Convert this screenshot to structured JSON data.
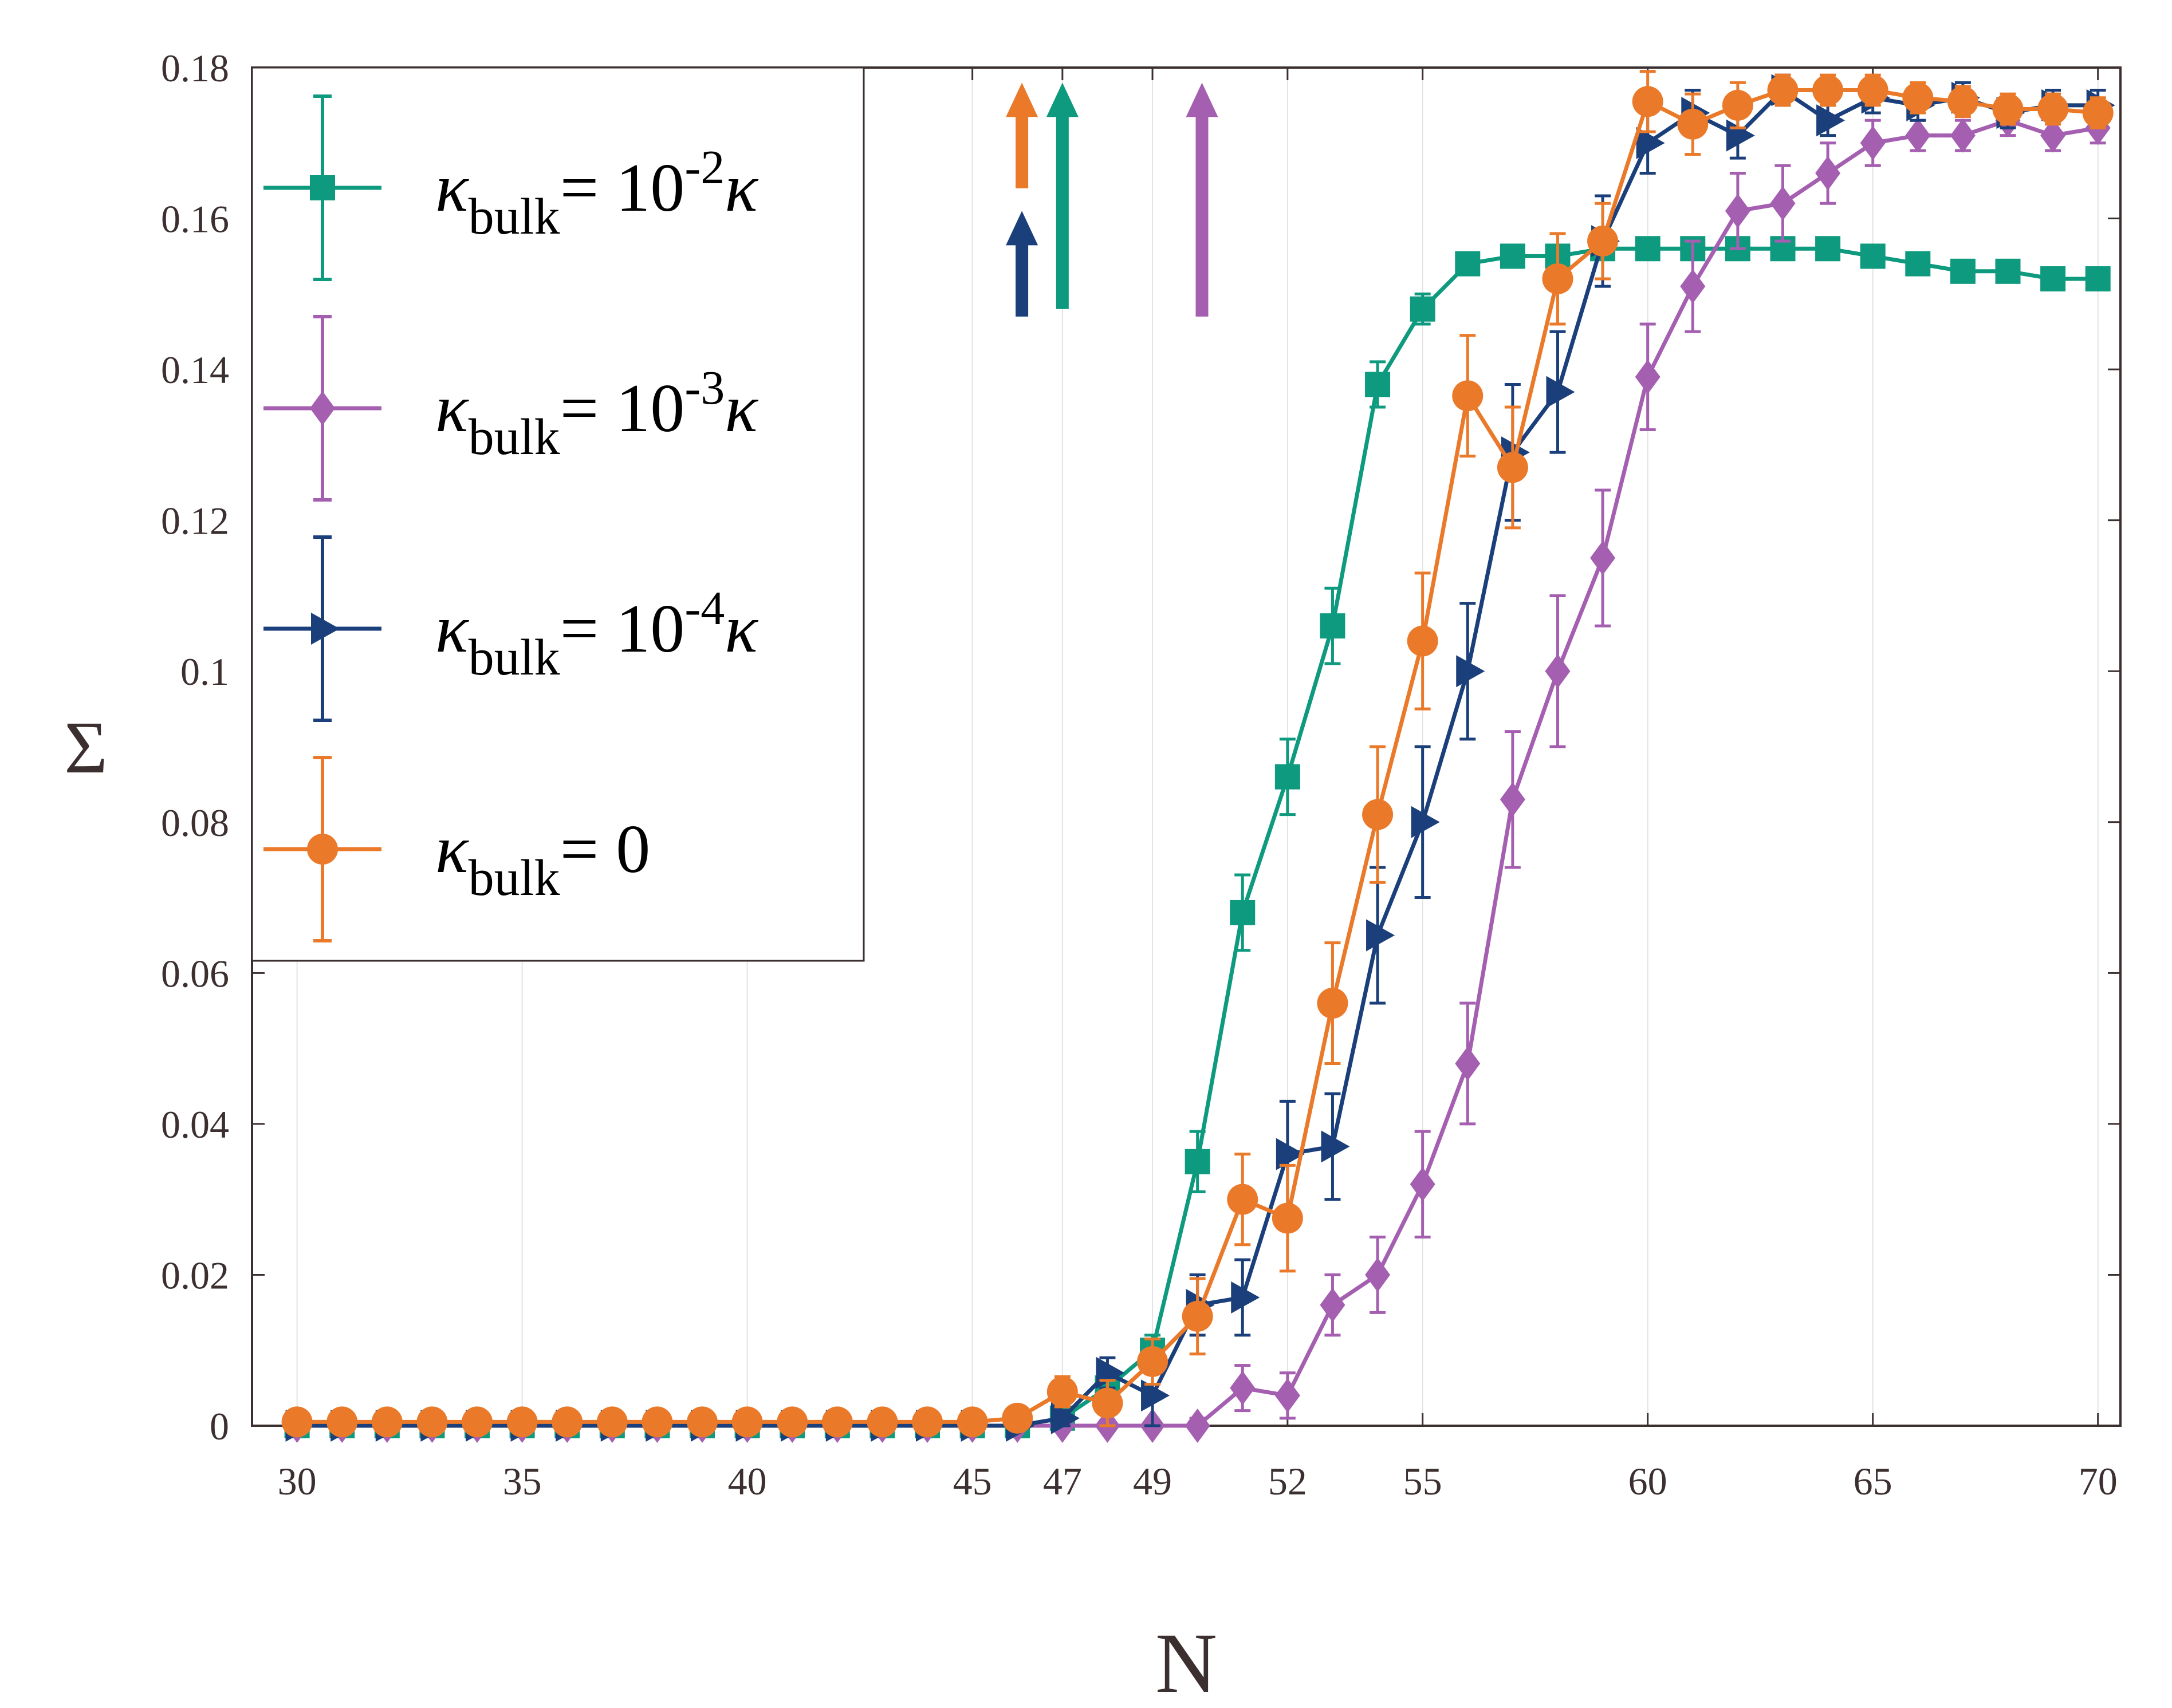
{
  "chart_data": {
    "type": "line",
    "title": "",
    "xlabel": "N",
    "ylabel": "Σ",
    "xlim": [
      29,
      70.5
    ],
    "ylim": [
      0,
      0.18
    ],
    "xticks": [
      30,
      35,
      40,
      45,
      47,
      49,
      52,
      55,
      60,
      65,
      70
    ],
    "xtick_labels": [
      "30",
      "35",
      "40",
      "45",
      "47",
      "49",
      "52",
      "55",
      "60",
      "65",
      "70"
    ],
    "yticks": [
      0,
      0.02,
      0.04,
      0.06,
      0.08,
      0.1,
      0.12,
      0.14,
      0.16,
      0.18
    ],
    "ytick_labels": [
      "0",
      "0.02",
      "0.04",
      "0.06",
      "0.08",
      "0.1",
      "0.12",
      "0.14",
      "0.16",
      "0.18"
    ],
    "grid": "vertical",
    "legend_position": "top-left",
    "x": [
      30,
      31,
      32,
      33,
      34,
      35,
      36,
      37,
      38,
      39,
      40,
      41,
      42,
      43,
      44,
      45,
      46,
      47,
      48,
      49,
      50,
      51,
      52,
      53,
      54,
      55,
      56,
      57,
      58,
      59,
      60,
      61,
      62,
      63,
      64,
      65,
      66,
      67,
      68,
      69,
      70
    ],
    "series": [
      {
        "name": "κbulk = 10^-2 κ",
        "legend": {
          "kappa": "κ",
          "sub": "bulk",
          "eq": "= 10",
          "exp": "-2",
          "tail": "κ"
        },
        "color": "#0e9a7e",
        "marker": "square",
        "values": [
          0,
          0,
          0,
          0,
          0,
          0,
          0,
          0,
          0,
          0,
          0,
          0,
          0,
          0,
          0,
          0,
          0,
          0.001,
          0.005,
          0.01,
          0.035,
          0.068,
          0.086,
          0.106,
          0.138,
          0.148,
          0.154,
          0.155,
          0.155,
          0.156,
          0.156,
          0.156,
          0.156,
          0.156,
          0.156,
          0.155,
          0.154,
          0.153,
          0.153,
          0.152,
          0.152
        ],
        "errors": [
          0.0005,
          0.0005,
          0.0005,
          0.0005,
          0.0005,
          0.0005,
          0.0005,
          0.0005,
          0.0005,
          0.0005,
          0.0005,
          0.0005,
          0.0005,
          0.0005,
          0.0005,
          0.0005,
          0.0005,
          0.0008,
          0.001,
          0.002,
          0.004,
          0.005,
          0.005,
          0.005,
          0.003,
          0.002,
          0.001,
          0.001,
          0.001,
          0.001,
          0.001,
          0.001,
          0.001,
          0.001,
          0.001,
          0.001,
          0.001,
          0.001,
          0.001,
          0.001,
          0.001
        ]
      },
      {
        "name": "κbulk = 10^-3 κ",
        "legend": {
          "kappa": "κ",
          "sub": "bulk",
          "eq": "= 10",
          "exp": "-3",
          "tail": "κ"
        },
        "color": "#a55fb0",
        "marker": "diamond",
        "values": [
          0,
          0,
          0,
          0,
          0,
          0,
          0,
          0,
          0,
          0,
          0,
          0,
          0,
          0,
          0,
          0,
          0,
          0,
          0,
          0,
          0,
          0.005,
          0.004,
          0.016,
          0.02,
          0.032,
          0.048,
          0.083,
          0.1,
          0.115,
          0.139,
          0.151,
          0.161,
          0.162,
          0.166,
          0.17,
          0.171,
          0.171,
          0.173,
          0.171,
          0.172
        ],
        "errors": [
          0.0004,
          0.0004,
          0.0004,
          0.0004,
          0.0004,
          0.0004,
          0.0004,
          0.0004,
          0.0004,
          0.0004,
          0.0004,
          0.0004,
          0.0004,
          0.0004,
          0.0004,
          0.0004,
          0.0004,
          0.0004,
          0.0005,
          0.0005,
          0.001,
          0.003,
          0.003,
          0.004,
          0.005,
          0.007,
          0.008,
          0.009,
          0.01,
          0.009,
          0.007,
          0.006,
          0.005,
          0.005,
          0.004,
          0.003,
          0.002,
          0.002,
          0.002,
          0.002,
          0.002
        ]
      },
      {
        "name": "κbulk = 10^-4 κ",
        "legend": {
          "kappa": "κ",
          "sub": "bulk",
          "eq": "= 10",
          "exp": "-4",
          "tail": "κ"
        },
        "color": "#1b3f7a",
        "marker": "triangle-right",
        "values": [
          0,
          0,
          0,
          0,
          0,
          0,
          0,
          0,
          0,
          0,
          0,
          0,
          0,
          0,
          0,
          0,
          0,
          0.001,
          0.007,
          0.004,
          0.016,
          0.017,
          0.036,
          0.037,
          0.065,
          0.08,
          0.1,
          0.129,
          0.137,
          0.157,
          0.17,
          0.174,
          0.171,
          0.177,
          0.173,
          0.176,
          0.175,
          0.176,
          0.174,
          0.175,
          0.175
        ],
        "errors": [
          0.0005,
          0.0005,
          0.0005,
          0.0005,
          0.0005,
          0.0005,
          0.0005,
          0.0005,
          0.0005,
          0.0005,
          0.0005,
          0.0005,
          0.0005,
          0.0005,
          0.0005,
          0.0005,
          0.0005,
          0.001,
          0.002,
          0.004,
          0.004,
          0.005,
          0.007,
          0.007,
          0.009,
          0.01,
          0.009,
          0.009,
          0.008,
          0.006,
          0.004,
          0.003,
          0.003,
          0.002,
          0.002,
          0.002,
          0.002,
          0.002,
          0.002,
          0.002,
          0.002
        ]
      },
      {
        "name": "κbulk = 0",
        "legend": {
          "kappa": "κ",
          "sub": "bulk",
          "eq": "= 0",
          "exp": "",
          "tail": ""
        },
        "color": "#ea7a2a",
        "marker": "circle",
        "values": [
          0.0005,
          0.0005,
          0.0005,
          0.0005,
          0.0005,
          0.0005,
          0.0005,
          0.0005,
          0.0005,
          0.0005,
          0.0005,
          0.0005,
          0.0005,
          0.0005,
          0.0005,
          0.0005,
          0.001,
          0.0045,
          0.003,
          0.0085,
          0.0145,
          0.03,
          0.0275,
          0.056,
          0.081,
          0.104,
          0.1365,
          0.127,
          0.152,
          0.157,
          0.1755,
          0.1725,
          0.175,
          0.177,
          0.177,
          0.177,
          0.176,
          0.1755,
          0.1745,
          0.1745,
          0.174
        ],
        "errors": [
          0.0005,
          0.0005,
          0.0005,
          0.0005,
          0.0005,
          0.0005,
          0.0005,
          0.0005,
          0.0005,
          0.0005,
          0.0005,
          0.0005,
          0.0005,
          0.0005,
          0.0005,
          0.0005,
          0.001,
          0.002,
          0.003,
          0.003,
          0.005,
          0.006,
          0.007,
          0.008,
          0.009,
          0.009,
          0.008,
          0.008,
          0.006,
          0.005,
          0.004,
          0.004,
          0.003,
          0.002,
          0.002,
          0.002,
          0.002,
          0.002,
          0.002,
          0.002,
          0.002
        ]
      }
    ],
    "annotations": [
      {
        "type": "arrow",
        "color": "#ea7a2a",
        "x": 46.1,
        "y_from": 0.164,
        "y_to": 0.178
      },
      {
        "type": "arrow",
        "color": "#1b3f7a",
        "x": 46.1,
        "y_from": 0.147,
        "y_to": 0.161
      },
      {
        "type": "arrow",
        "color": "#0e9a7e",
        "x": 47.0,
        "y_from": 0.148,
        "y_to": 0.178
      },
      {
        "type": "arrow",
        "color": "#a55fb0",
        "x": 50.1,
        "y_from": 0.147,
        "y_to": 0.178
      }
    ]
  }
}
